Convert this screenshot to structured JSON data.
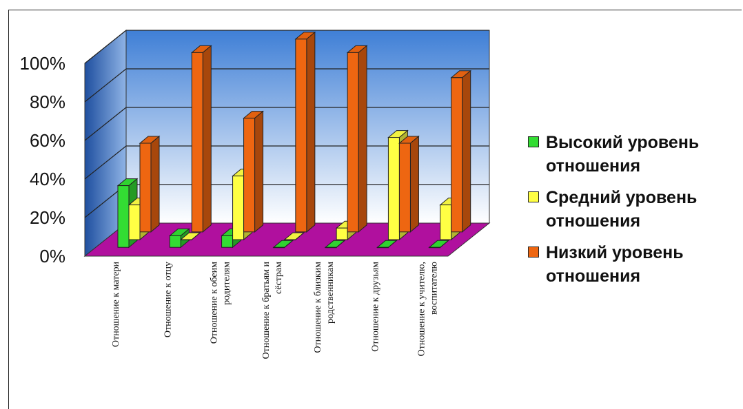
{
  "chart_data": {
    "type": "bar",
    "title": "",
    "xlabel": "",
    "ylabel": "",
    "ylim": [
      0,
      100
    ],
    "yticks": [
      "0%",
      "20%",
      "40%",
      "60%",
      "80%",
      "100%"
    ],
    "grid": true,
    "legend_position": "right",
    "categories": [
      [
        "Отношение к матери"
      ],
      [
        "Отношение к отцу"
      ],
      [
        "Отношение к обеим",
        "родителям"
      ],
      [
        "Отношение к братьям и",
        "сёстрам"
      ],
      [
        "Отношение к близким",
        "родственникам"
      ],
      [
        "Отношение к друзьям"
      ],
      [
        "Отношение к учителю,",
        "воспитателю"
      ]
    ],
    "series": [
      {
        "name": "Высокий уровень отношения",
        "color": "#33dd33",
        "values": [
          32,
          6,
          6,
          0,
          0,
          0,
          0
        ]
      },
      {
        "name": "Средний уровень отношения",
        "color": "#ffff44",
        "values": [
          18,
          0,
          33,
          0,
          6,
          53,
          18
        ]
      },
      {
        "name": "Низкий уровень отношения",
        "color": "#ee6611",
        "values": [
          46,
          93,
          59,
          100,
          93,
          46,
          80
        ]
      }
    ]
  },
  "legend": [
    {
      "line1": "Высокий уровень",
      "line2": "отношения"
    },
    {
      "line1": "Средний уровень",
      "line2": "отношения"
    },
    {
      "line1": "Низкий уровень",
      "line2": "отношения"
    }
  ]
}
